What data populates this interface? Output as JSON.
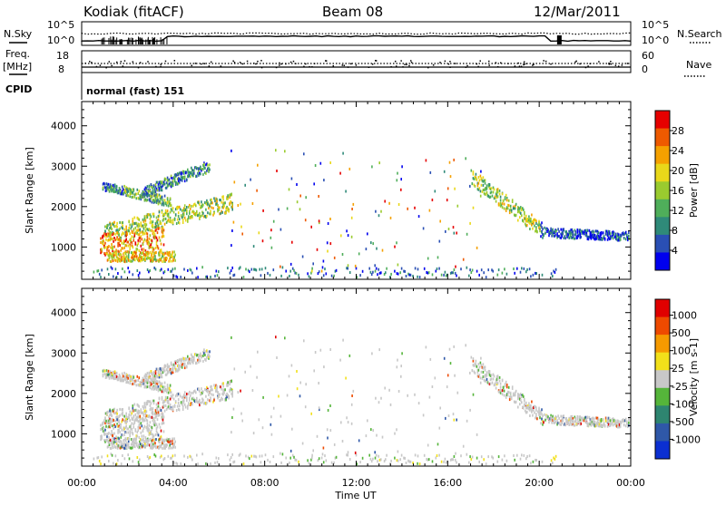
{
  "header": {
    "radar": "Kodiak (fitACF)",
    "beam": "Beam 08",
    "date": "12/Mar/2011"
  },
  "status_panels": {
    "nsky_label": "N.Sky",
    "nsearch_label": "N.Search",
    "noise_ticks_left": [
      "10^5",
      "10^0"
    ],
    "noise_ticks_right": [
      "10^5",
      "10^0"
    ],
    "freq_label_1": "Freq.",
    "freq_label_2": "[MHz]",
    "freq_ticks": [
      "18",
      "8"
    ],
    "nave_label": "Nave",
    "nave_ticks": [
      "60",
      "0"
    ],
    "cpid_label": "CPID",
    "cpid_text": "normal (fast) 151"
  },
  "colors": {
    "power_scale": [
      "#0000ee",
      "#2a4fb4",
      "#2f8a79",
      "#4fae5a",
      "#9acb2f",
      "#e9d81a",
      "#f5a100",
      "#ee5a00",
      "#e60000"
    ],
    "velocity_scale": [
      "#0b2fd1",
      "#2f58a8",
      "#2e8570",
      "#55b53a",
      "#c8c8c8",
      "#f2e01a",
      "#f59a00",
      "#ee4a00",
      "#e00000"
    ]
  },
  "chart_data": [
    {
      "type": "heatmap",
      "name": "power",
      "ylabel": "Slant Range [km]",
      "yticks": [
        "1000",
        "2000",
        "3000",
        "4000"
      ],
      "ylim": [
        200,
        4600
      ],
      "xlim": [
        "00:00",
        "24:00"
      ],
      "colorbar": {
        "label": "Power [dB]",
        "ticks": [
          "4",
          "8",
          "12",
          "16",
          "20",
          "24",
          "28"
        ],
        "range": [
          0,
          32
        ]
      },
      "scatter_regions": [
        {
          "t_start": 0.8,
          "t_end": 6.7,
          "r_start": 900,
          "r_end": 3300,
          "desc": "morning echoes"
        },
        {
          "t_start": 17.0,
          "t_end": 23.9,
          "r_start": 1100,
          "r_end": 2900,
          "desc": "evening echoes"
        },
        {
          "t_start": 0.5,
          "t_end": 21.0,
          "r_start": 200,
          "r_end": 500,
          "desc": "near-range ground scatter"
        }
      ]
    },
    {
      "type": "heatmap",
      "name": "velocity",
      "ylabel": "Slant Range [km]",
      "yticks": [
        "1000",
        "2000",
        "3000",
        "4000"
      ],
      "ylim": [
        200,
        4600
      ],
      "xlim": [
        "00:00",
        "24:00"
      ],
      "colorbar": {
        "label": "Velocity [m s-1]",
        "ticks": [
          "1000",
          "500",
          "100",
          "25",
          "-25",
          "-100",
          "-500",
          "-1000"
        ]
      }
    }
  ],
  "x_axis": {
    "ticks": [
      "00:00",
      "04:00",
      "08:00",
      "12:00",
      "16:00",
      "20:00",
      "00:00"
    ],
    "label": "Time UT"
  }
}
